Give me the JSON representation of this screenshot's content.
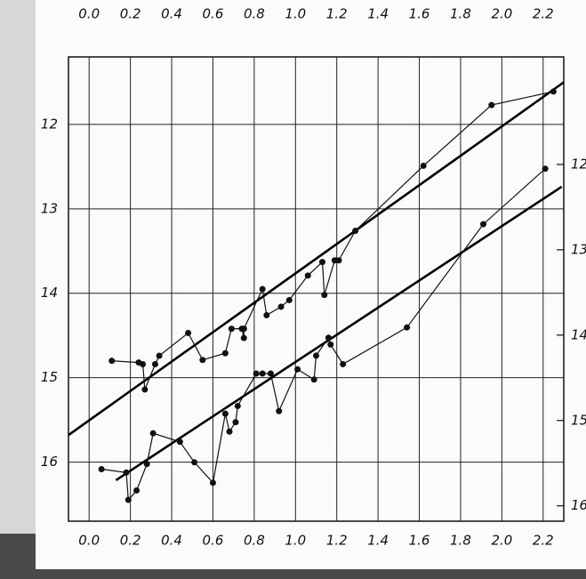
{
  "chart_data": {
    "type": "line",
    "xlim": [
      -0.1,
      2.3
    ],
    "xticks": [
      {
        "value": 0,
        "label": "0.0"
      },
      0.2,
      0.4,
      0.6,
      0.8,
      {
        "value": 1,
        "label": "1.0"
      },
      1.2,
      1.4,
      1.6,
      1.8,
      {
        "value": 2,
        "label": "2.0"
      },
      2.2
    ],
    "ylim": [
      16.7,
      11.2
    ],
    "yticks": [
      12,
      13,
      14,
      15,
      16
    ],
    "y2lim": [
      16.18,
      10.74
    ],
    "y2ticks": [
      12,
      13,
      14,
      15,
      16
    ],
    "grid": true,
    "series": [
      {
        "color": "#111111",
        "x": [
          0.11,
          0.24,
          0.26,
          0.27,
          0.32,
          0.34,
          0.48,
          0.55,
          0.66,
          0.69,
          0.74,
          0.75,
          0.75,
          0.84,
          0.86,
          0.93,
          0.97,
          1.06,
          1.13,
          1.14,
          1.19,
          1.21,
          1.29,
          1.62,
          1.95,
          2.25
        ],
        "values": [
          14.8,
          14.82,
          14.84,
          15.14,
          14.84,
          14.74,
          14.47,
          14.79,
          14.71,
          14.42,
          14.42,
          14.53,
          14.42,
          13.95,
          14.26,
          14.16,
          14.08,
          13.79,
          13.63,
          14.02,
          13.61,
          13.61,
          13.26,
          12.49,
          11.77,
          11.61
        ]
      },
      {
        "color": "#111111",
        "axis": "y2",
        "x": [
          0.06,
          0.18,
          0.19,
          0.23,
          0.28,
          0.31,
          0.44,
          0.51,
          0.6,
          0.66,
          0.68,
          0.71,
          0.72,
          0.81,
          0.84,
          0.88,
          0.92,
          1.01,
          1.09,
          1.1,
          1.16,
          1.17,
          1.23,
          1.54,
          1.91,
          2.21
        ],
        "values": [
          15.57,
          15.61,
          15.93,
          15.82,
          15.51,
          15.15,
          15.25,
          15.49,
          15.73,
          14.92,
          15.13,
          15.02,
          14.83,
          14.45,
          14.45,
          14.45,
          14.89,
          14.4,
          14.52,
          14.24,
          14.03,
          14.11,
          14.34,
          13.91,
          12.7,
          12.05
        ]
      }
    ],
    "fit_lines": [
      {
        "color": "#000000",
        "x": [
          -0.1,
          2.3
        ],
        "values": [
          15.68,
          11.5
        ]
      },
      {
        "color": "#000000",
        "axis": "y2",
        "x": [
          0.13,
          2.29
        ],
        "values": [
          15.7,
          12.26
        ]
      }
    ]
  }
}
